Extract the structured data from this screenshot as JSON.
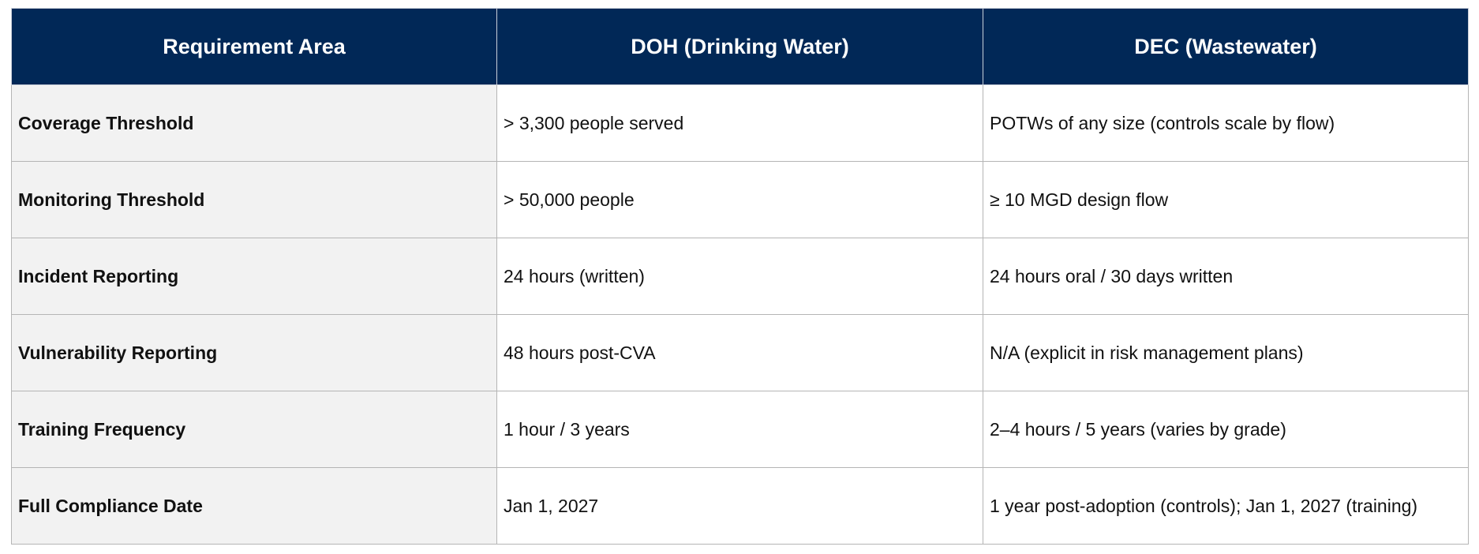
{
  "table": {
    "headers": [
      "Requirement Area",
      "DOH (Drinking Water)",
      "DEC (Wastewater)"
    ],
    "rows": [
      [
        "Coverage Threshold",
        "> 3,300 people served",
        "POTWs of any size (controls scale by flow)"
      ],
      [
        "Monitoring Threshold",
        "> 50,000 people",
        "≥ 10 MGD design flow"
      ],
      [
        "Incident Reporting",
        "24 hours (written)",
        "24 hours oral / 30 days written"
      ],
      [
        "Vulnerability Reporting",
        "48 hours post-CVA",
        "N/A (explicit in risk management plans)"
      ],
      [
        "Training Frequency",
        "1 hour / 3 years",
        "2–4 hours / 5 years (varies by grade)"
      ],
      [
        "Full Compliance Date",
        "Jan 1, 2027",
        "1 year post-adoption (controls); Jan 1, 2027 (training)"
      ]
    ]
  },
  "colors": {
    "header_bg": "#012857",
    "header_text": "#ffffff",
    "label_bg": "#f2f2f2",
    "border": "#b5b5b5"
  }
}
